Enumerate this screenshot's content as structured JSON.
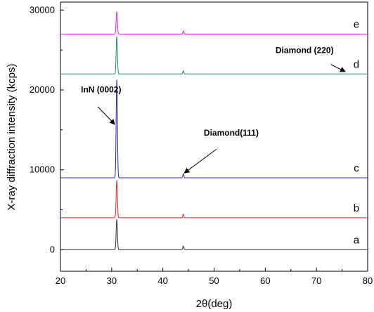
{
  "chart_data": {
    "type": "line",
    "xlabel": "2θ(deg)",
    "ylabel": "X-ray diffraction intensity (kcps)",
    "xlim": [
      20,
      80
    ],
    "ylim": [
      -2700,
      31000
    ],
    "x_ticks": [
      20,
      30,
      40,
      50,
      60,
      70,
      80
    ],
    "y_ticks": [
      0,
      10000,
      20000,
      30000
    ],
    "grid": false,
    "legend": "none",
    "series": [
      {
        "label": "a",
        "color": "#333333",
        "baseline": 0,
        "peaks": [
          {
            "x": 31.0,
            "height": 3800
          },
          {
            "x": 44.0,
            "height": 450
          }
        ]
      },
      {
        "label": "b",
        "color": "#ee2222",
        "baseline": 4000,
        "peaks": [
          {
            "x": 31.0,
            "height": 4700
          },
          {
            "x": 44.0,
            "height": 450
          }
        ]
      },
      {
        "label": "c",
        "color": "#2222cc",
        "baseline": 9000,
        "peaks": [
          {
            "x": 31.0,
            "height": 12300
          },
          {
            "x": 44.0,
            "height": 500
          }
        ]
      },
      {
        "label": "d",
        "color": "#228877",
        "baseline": 22000,
        "peaks": [
          {
            "x": 31.0,
            "height": 4700
          },
          {
            "x": 44.0,
            "height": 400
          }
        ]
      },
      {
        "label": "e",
        "color": "#dd22dd",
        "baseline": 27000,
        "peaks": [
          {
            "x": 31.0,
            "height": 2800
          },
          {
            "x": 44.0,
            "height": 400
          }
        ]
      }
    ],
    "annotations": [
      {
        "text": "InN (0002)",
        "text_x": 24.0,
        "text_y": 19700,
        "arrow_from": [
          27.3,
          17900
        ],
        "arrow_to": [
          30.6,
          15700
        ]
      },
      {
        "text": "Diamond(111)",
        "text_x": 48.0,
        "text_y": 14300,
        "arrow_from": [
          50.5,
          12600
        ],
        "arrow_to": [
          44.2,
          9600
        ]
      },
      {
        "text": "Diamond (220)",
        "text_x": 62.0,
        "text_y": 24600,
        "arrow_from": [
          72.8,
          23200
        ],
        "arrow_to": [
          75.6,
          22300
        ]
      }
    ]
  }
}
